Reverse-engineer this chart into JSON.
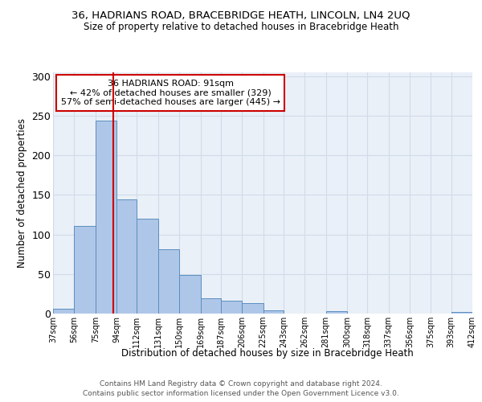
{
  "title1": "36, HADRIANS ROAD, BRACEBRIDGE HEATH, LINCOLN, LN4 2UQ",
  "title2": "Size of property relative to detached houses in Bracebridge Heath",
  "xlabel": "Distribution of detached houses by size in Bracebridge Heath",
  "ylabel": "Number of detached properties",
  "footer1": "Contains HM Land Registry data © Crown copyright and database right 2024.",
  "footer2": "Contains public sector information licensed under the Open Government Licence v3.0.",
  "annotation_line1": "36 HADRIANS ROAD: 91sqm",
  "annotation_line2": "← 42% of detached houses are smaller (329)",
  "annotation_line3": "57% of semi-detached houses are larger (445) →",
  "property_size": 91,
  "bin_edges": [
    37,
    56,
    75,
    94,
    112,
    131,
    150,
    169,
    187,
    206,
    225,
    243,
    262,
    281,
    300,
    318,
    337,
    356,
    375,
    393,
    412
  ],
  "bin_counts": [
    6,
    111,
    244,
    144,
    120,
    81,
    49,
    19,
    16,
    13,
    4,
    0,
    0,
    3,
    0,
    0,
    0,
    0,
    0,
    2
  ],
  "bar_color": "#aec6e8",
  "bar_edge_color": "#5a8fc0",
  "vline_color": "#cc0000",
  "vline_x": 91,
  "ylim": [
    0,
    305
  ],
  "yticks": [
    0,
    50,
    100,
    150,
    200,
    250,
    300
  ],
  "annotation_box_color": "#cc0000",
  "grid_color": "#d0dce8",
  "bg_color": "#eaf0f8"
}
